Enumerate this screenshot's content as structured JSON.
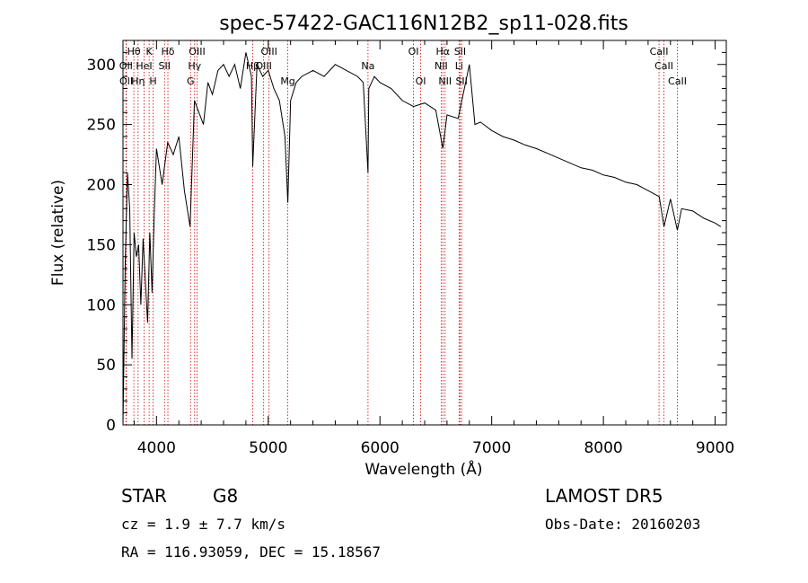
{
  "chart_data": {
    "type": "line",
    "title": "spec-57422-GAC116N12B2_sp11-028.fits",
    "xlabel": "Wavelength (Å)",
    "ylabel": "Flux (relative)",
    "xlim": [
      3700,
      9100
    ],
    "ylim": [
      0,
      320
    ],
    "x_ticks": [
      4000,
      5000,
      6000,
      7000,
      8000,
      9000
    ],
    "y_ticks": [
      0,
      50,
      100,
      150,
      200,
      250,
      300
    ],
    "grid": false,
    "series": [
      {
        "x": [
          3700,
          3720,
          3740,
          3760,
          3780,
          3800,
          3820,
          3840,
          3860,
          3880,
          3900,
          3920,
          3940,
          3960,
          3980,
          4000,
          4050,
          4100,
          4150,
          4200,
          4250,
          4300,
          4340,
          4380,
          4420,
          4460,
          4500,
          4550,
          4600,
          4650,
          4700,
          4750,
          4800,
          4850,
          4861,
          4900,
          4950,
          5000,
          5050,
          5100,
          5150,
          5175,
          5200,
          5250,
          5300,
          5400,
          5500,
          5600,
          5700,
          5800,
          5850,
          5893,
          5900,
          5950,
          6000,
          6100,
          6200,
          6300,
          6400,
          6500,
          6563,
          6600,
          6700,
          6800,
          6850,
          6900,
          7000,
          7100,
          7200,
          7300,
          7400,
          7500,
          7600,
          7700,
          7800,
          7900,
          8000,
          8100,
          8200,
          8300,
          8400,
          8500,
          8542,
          8600,
          8662,
          8700,
          8800,
          8900,
          9000,
          9050
        ],
        "values": [
          0,
          135,
          210,
          180,
          55,
          160,
          140,
          150,
          100,
          155,
          120,
          85,
          160,
          110,
          175,
          230,
          200,
          235,
          225,
          240,
          195,
          165,
          270,
          260,
          250,
          285,
          275,
          295,
          300,
          290,
          300,
          280,
          310,
          290,
          215,
          300,
          290,
          295,
          280,
          270,
          240,
          185,
          270,
          285,
          290,
          295,
          290,
          300,
          295,
          290,
          285,
          210,
          280,
          290,
          285,
          280,
          270,
          265,
          268,
          262,
          230,
          258,
          255,
          300,
          250,
          252,
          245,
          240,
          237,
          233,
          230,
          226,
          222,
          218,
          214,
          212,
          208,
          206,
          202,
          200,
          195,
          190,
          165,
          188,
          162,
          180,
          178,
          172,
          168,
          165
        ]
      }
    ],
    "line_markers": [
      {
        "label": "Hθ",
        "x": 3797,
        "row": 0
      },
      {
        "label": "OII",
        "x": 3727,
        "row": 1
      },
      {
        "label": "OII",
        "x": 3729,
        "row": 2
      },
      {
        "label": "Hη",
        "x": 3835,
        "row": 2
      },
      {
        "label": "HeI",
        "x": 3889,
        "row": 1
      },
      {
        "label": "K",
        "x": 3934,
        "row": 0
      },
      {
        "label": "H",
        "x": 3969,
        "row": 2
      },
      {
        "label": "SII",
        "x": 4072,
        "row": 1
      },
      {
        "label": "Hδ",
        "x": 4102,
        "row": 0
      },
      {
        "label": "OIII",
        "x": 4363,
        "row": 0
      },
      {
        "label": "Hγ",
        "x": 4341,
        "row": 1
      },
      {
        "label": "G",
        "x": 4305,
        "row": 2
      },
      {
        "label": "Hβ",
        "x": 4861,
        "row": 1
      },
      {
        "label": "OIII",
        "x": 4959,
        "row": 1
      },
      {
        "label": "OIII",
        "x": 5007,
        "row": 0
      },
      {
        "label": "Mg",
        "x": 5175,
        "row": 2
      },
      {
        "label": "Na",
        "x": 5893,
        "row": 1
      },
      {
        "label": "OI",
        "x": 6300,
        "row": 0
      },
      {
        "label": "OI",
        "x": 6364,
        "row": 2
      },
      {
        "label": "Hα",
        "x": 6563,
        "row": 0
      },
      {
        "label": "NII",
        "x": 6548,
        "row": 1
      },
      {
        "label": "NII",
        "x": 6583,
        "row": 2
      },
      {
        "label": "SII",
        "x": 6717,
        "row": 0
      },
      {
        "label": "Li",
        "x": 6708,
        "row": 1
      },
      {
        "label": "SII",
        "x": 6731,
        "row": 2
      },
      {
        "label": "CaII",
        "x": 8498,
        "row": 0
      },
      {
        "label": "CaII",
        "x": 8542,
        "row": 1
      },
      {
        "label": "CaII",
        "x": 8662,
        "row": 2
      }
    ],
    "marker_color": "#cc0000"
  },
  "info": {
    "class": "STAR",
    "subclass": "G8",
    "survey": "LAMOST  DR5",
    "cz": "cz = 1.9 ± 7.7 km/s",
    "obs_date": "Obs-Date: 20160203",
    "radec": "RA = 116.93059, DEC =  15.18567"
  }
}
